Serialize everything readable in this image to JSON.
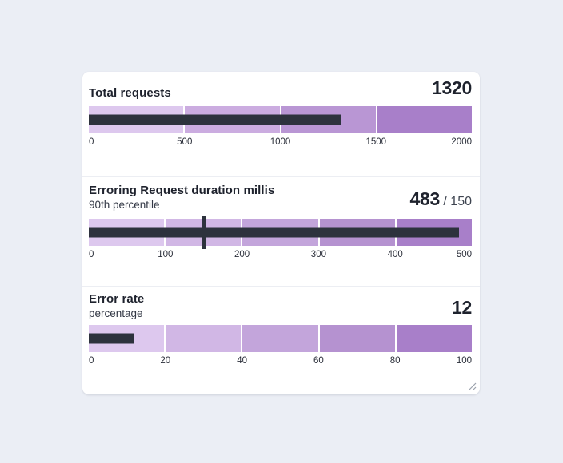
{
  "colors": {
    "page_bg": "#ebeef5",
    "card_bg": "#ffffff",
    "divider": "#eceef3",
    "title": "#1e222d",
    "subtitle": "#333845",
    "value": "#1e222d",
    "target_text": "#3e4450",
    "tick": "#2b2f3a",
    "bar": "#2d323d",
    "marker": "#2d323d",
    "handle": "#9aa1ac"
  },
  "chart_data": [
    {
      "type": "bullet",
      "title": "Total requests",
      "subtitle": "",
      "value": 1320,
      "value_display": "1320",
      "target": null,
      "target_display": "",
      "range": [
        0,
        2000
      ],
      "ticks": [
        "0",
        "500",
        "1000",
        "1500",
        "2000"
      ],
      "segment_colors": [
        "#ddc8ee",
        "#cbace0",
        "#b996d4",
        "#a87fc9"
      ]
    },
    {
      "type": "bullet",
      "title": "Erroring Request duration millis",
      "subtitle": "90th percentile",
      "value": 483,
      "value_display": "483",
      "target": 150,
      "target_display": "/ 150",
      "range": [
        0,
        500
      ],
      "ticks": [
        "0",
        "100",
        "200",
        "300",
        "400",
        "500"
      ],
      "segment_colors": [
        "#ddc8ee",
        "#d1b7e5",
        "#c3a5db",
        "#b592d0",
        "#a87fc9"
      ]
    },
    {
      "type": "bullet",
      "title": "Error rate",
      "subtitle": "percentage",
      "value": 12,
      "value_display": "12",
      "target": null,
      "target_display": "",
      "range": [
        0,
        100
      ],
      "ticks": [
        "0",
        "20",
        "40",
        "60",
        "80",
        "100"
      ],
      "segment_colors": [
        "#ddc8ee",
        "#d1b7e5",
        "#c3a5db",
        "#b592d0",
        "#a87fc9"
      ]
    }
  ]
}
